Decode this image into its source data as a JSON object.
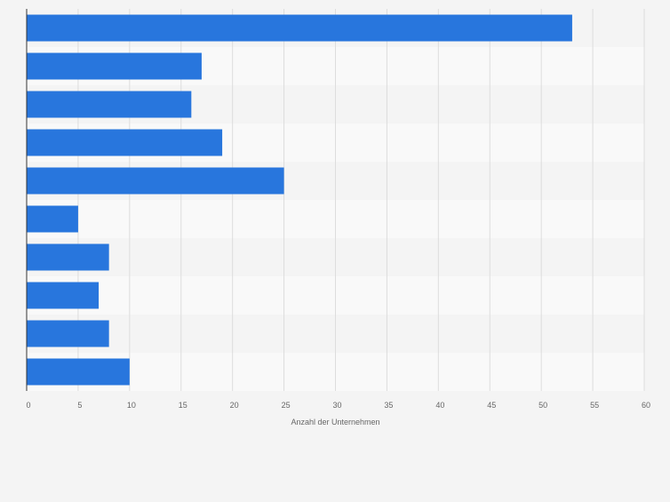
{
  "chart_data": {
    "type": "bar",
    "orientation": "horizontal",
    "categories": [
      "",
      "",
      "",
      "",
      "",
      "",
      "",
      "",
      "",
      ""
    ],
    "values": [
      53,
      17,
      16,
      19,
      25,
      5,
      8,
      7,
      8,
      10
    ],
    "title": "",
    "xlabel": "Anzahl der Unternehmen",
    "ylabel": "",
    "xlim": [
      0,
      60
    ],
    "xticks": [
      "0",
      "5",
      "10",
      "15",
      "20",
      "25",
      "30",
      "35",
      "40",
      "45",
      "50",
      "55",
      "60"
    ],
    "grid": true,
    "legend": "none",
    "colors": {
      "bar": "#2876dd",
      "band_light": "#f9f9f9",
      "band_dark": "#f4f4f4",
      "grid": "#dddddd",
      "axis": "#333333",
      "tick_text": "#666666"
    }
  }
}
